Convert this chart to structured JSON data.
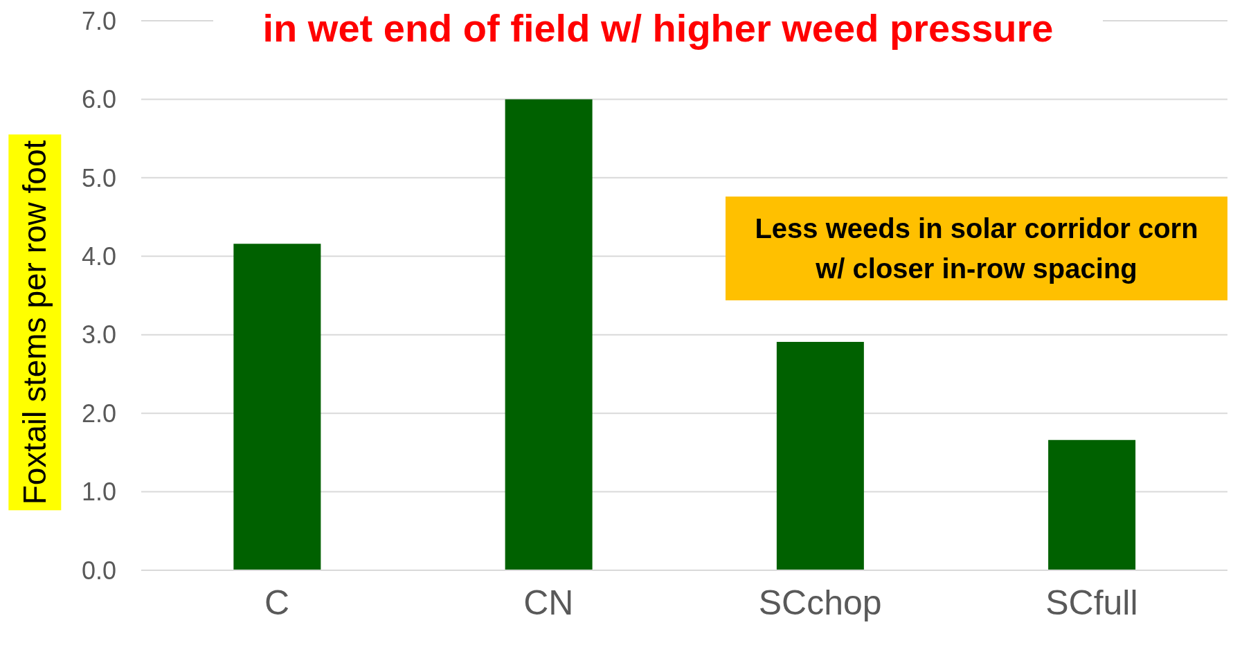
{
  "chart_data": {
    "type": "bar",
    "title": "in wet end of field w/ higher weed pressure",
    "ylabel": "Foxtail stems per row foot",
    "categories": [
      "C",
      "CN",
      "SCchop",
      "SCfull"
    ],
    "values": [
      4.16,
      6.0,
      2.91,
      1.66
    ],
    "color": "#006100",
    "ylim": [
      0,
      7
    ],
    "yticks": [
      {
        "value": 0,
        "label": "0.0"
      },
      {
        "value": 1,
        "label": "1.0"
      },
      {
        "value": 2,
        "label": "2.0"
      },
      {
        "value": 3,
        "label": "3.0"
      },
      {
        "value": 4,
        "label": "4.0"
      },
      {
        "value": 5,
        "label": "5.0"
      },
      {
        "value": 6,
        "label": "6.0"
      },
      {
        "value": 7,
        "label": "7.0"
      }
    ],
    "grid": "y",
    "annotations": [
      "Less weeds in solar corridor corn\nw/ closer in-row spacing"
    ]
  }
}
